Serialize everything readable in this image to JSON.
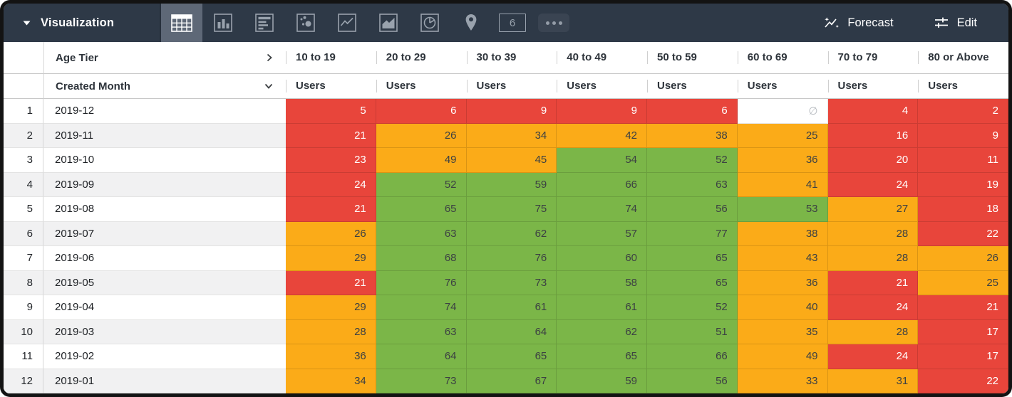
{
  "toolbar": {
    "title": "Visualization",
    "forecast_label": "Forecast",
    "edit_label": "Edit",
    "single_value_text": "6",
    "selected_icon": "table-icon",
    "icons": [
      "table-icon",
      "bar-chart-icon",
      "row-chart-icon",
      "scatter-icon",
      "line-chart-icon",
      "area-chart-icon",
      "pie-chart-icon",
      "map-pin-icon",
      "single-value-icon",
      "more-options-icon"
    ]
  },
  "table": {
    "pivot_field": "Age Tier",
    "row_field": "Created Month",
    "measure_label": "Users",
    "columns": [
      "10 to 19",
      "20 to 29",
      "30 to 39",
      "40 to 49",
      "50 to 59",
      "60 to 69",
      "70 to 79",
      "80 or Above"
    ],
    "rows": [
      {
        "n": "1",
        "month": "2019-12",
        "cells": [
          [
            "5",
            "r"
          ],
          [
            "6",
            "r"
          ],
          [
            "9",
            "r"
          ],
          [
            "9",
            "r"
          ],
          [
            "6",
            "r"
          ],
          [
            "∅",
            "n"
          ],
          [
            "4",
            "r"
          ],
          [
            "2",
            "r"
          ]
        ]
      },
      {
        "n": "2",
        "month": "2019-11",
        "cells": [
          [
            "21",
            "r"
          ],
          [
            "26",
            "o"
          ],
          [
            "34",
            "o"
          ],
          [
            "42",
            "o"
          ],
          [
            "38",
            "o"
          ],
          [
            "25",
            "o"
          ],
          [
            "16",
            "r"
          ],
          [
            "9",
            "r"
          ]
        ]
      },
      {
        "n": "3",
        "month": "2019-10",
        "cells": [
          [
            "23",
            "r"
          ],
          [
            "49",
            "o"
          ],
          [
            "45",
            "o"
          ],
          [
            "54",
            "g"
          ],
          [
            "52",
            "g"
          ],
          [
            "36",
            "o"
          ],
          [
            "20",
            "r"
          ],
          [
            "11",
            "r"
          ]
        ]
      },
      {
        "n": "4",
        "month": "2019-09",
        "cells": [
          [
            "24",
            "r"
          ],
          [
            "52",
            "g"
          ],
          [
            "59",
            "g"
          ],
          [
            "66",
            "g"
          ],
          [
            "63",
            "g"
          ],
          [
            "41",
            "o"
          ],
          [
            "24",
            "r"
          ],
          [
            "19",
            "r"
          ]
        ]
      },
      {
        "n": "5",
        "month": "2019-08",
        "cells": [
          [
            "21",
            "r"
          ],
          [
            "65",
            "g"
          ],
          [
            "75",
            "g"
          ],
          [
            "74",
            "g"
          ],
          [
            "56",
            "g"
          ],
          [
            "53",
            "g"
          ],
          [
            "27",
            "o"
          ],
          [
            "18",
            "r"
          ]
        ]
      },
      {
        "n": "6",
        "month": "2019-07",
        "cells": [
          [
            "26",
            "o"
          ],
          [
            "63",
            "g"
          ],
          [
            "62",
            "g"
          ],
          [
            "57",
            "g"
          ],
          [
            "77",
            "g"
          ],
          [
            "38",
            "o"
          ],
          [
            "28",
            "o"
          ],
          [
            "22",
            "r"
          ]
        ]
      },
      {
        "n": "7",
        "month": "2019-06",
        "cells": [
          [
            "29",
            "o"
          ],
          [
            "68",
            "g"
          ],
          [
            "76",
            "g"
          ],
          [
            "60",
            "g"
          ],
          [
            "65",
            "g"
          ],
          [
            "43",
            "o"
          ],
          [
            "28",
            "o"
          ],
          [
            "26",
            "o"
          ]
        ]
      },
      {
        "n": "8",
        "month": "2019-05",
        "cells": [
          [
            "21",
            "r"
          ],
          [
            "76",
            "g"
          ],
          [
            "73",
            "g"
          ],
          [
            "58",
            "g"
          ],
          [
            "65",
            "g"
          ],
          [
            "36",
            "o"
          ],
          [
            "21",
            "r"
          ],
          [
            "25",
            "o"
          ]
        ]
      },
      {
        "n": "9",
        "month": "2019-04",
        "cells": [
          [
            "29",
            "o"
          ],
          [
            "74",
            "g"
          ],
          [
            "61",
            "g"
          ],
          [
            "61",
            "g"
          ],
          [
            "52",
            "g"
          ],
          [
            "40",
            "o"
          ],
          [
            "24",
            "r"
          ],
          [
            "21",
            "r"
          ]
        ]
      },
      {
        "n": "10",
        "month": "2019-03",
        "cells": [
          [
            "28",
            "o"
          ],
          [
            "63",
            "g"
          ],
          [
            "64",
            "g"
          ],
          [
            "62",
            "g"
          ],
          [
            "51",
            "g"
          ],
          [
            "35",
            "o"
          ],
          [
            "28",
            "o"
          ],
          [
            "17",
            "r"
          ]
        ]
      },
      {
        "n": "11",
        "month": "2019-02",
        "cells": [
          [
            "36",
            "o"
          ],
          [
            "64",
            "g"
          ],
          [
            "65",
            "g"
          ],
          [
            "65",
            "g"
          ],
          [
            "66",
            "g"
          ],
          [
            "49",
            "o"
          ],
          [
            "24",
            "r"
          ],
          [
            "17",
            "r"
          ]
        ]
      },
      {
        "n": "12",
        "month": "2019-01",
        "cells": [
          [
            "34",
            "o"
          ],
          [
            "73",
            "g"
          ],
          [
            "67",
            "g"
          ],
          [
            "59",
            "g"
          ],
          [
            "56",
            "g"
          ],
          [
            "33",
            "o"
          ],
          [
            "31",
            "o"
          ],
          [
            "22",
            "r"
          ]
        ]
      }
    ]
  },
  "colors": {
    "red": "#e8453b",
    "orange": "#fbab18",
    "green": "#7bb648",
    "null_bg": "#ffffff",
    "null_text": "#b7bbc0",
    "cell_text_dark": "#3c4043",
    "cell_text_light": "#ffffff",
    "toolbar_bg": "#2e3947",
    "selected_icon_bg": "#5e6877"
  }
}
